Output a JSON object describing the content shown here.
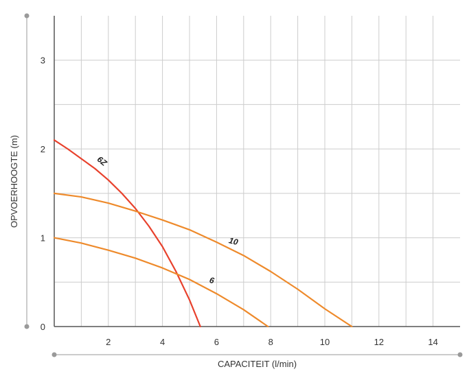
{
  "chart_data": {
    "type": "line",
    "title": "",
    "xlabel": "CAPACITEIT (l/min)",
    "ylabel": "OPVOERHOOGTE (m)",
    "xlim": [
      0,
      15
    ],
    "ylim": [
      0,
      3.5
    ],
    "x_ticks": [
      "2",
      "4",
      "6",
      "8",
      "10",
      "12",
      "14"
    ],
    "y_ticks": [
      "0",
      "1",
      "2",
      "3"
    ],
    "x_tick_values": [
      2,
      4,
      6,
      8,
      10,
      12,
      14
    ],
    "y_tick_values": [
      0,
      1,
      2,
      3
    ],
    "grid": true,
    "series": [
      {
        "name": "6Z",
        "color": "#e8412c",
        "x": [
          0,
          0.5,
          1,
          1.5,
          2,
          2.5,
          3,
          3.5,
          4,
          4.5,
          5,
          5.4
        ],
        "y": [
          2.1,
          2.0,
          1.89,
          1.78,
          1.65,
          1.5,
          1.33,
          1.13,
          0.9,
          0.62,
          0.3,
          0
        ]
      },
      {
        "name": "10",
        "color": "#ee8a2b",
        "x": [
          0,
          1,
          2,
          3,
          4,
          5,
          6,
          7,
          8,
          9,
          10,
          11
        ],
        "y": [
          1.5,
          1.46,
          1.39,
          1.3,
          1.2,
          1.09,
          0.95,
          0.8,
          0.62,
          0.42,
          0.2,
          0
        ]
      },
      {
        "name": "6",
        "color": "#ee8a2b",
        "x": [
          0,
          1,
          2,
          3,
          4,
          5,
          6,
          7,
          7.9
        ],
        "y": [
          1.0,
          0.94,
          0.86,
          0.77,
          0.66,
          0.53,
          0.37,
          0.19,
          0
        ]
      }
    ],
    "series_label_positions": [
      {
        "name": "6Z",
        "x": 1.7,
        "y": 1.84,
        "rotate": 40
      },
      {
        "name": "10",
        "x": 6.6,
        "y": 0.93,
        "rotate": 14
      },
      {
        "name": "6",
        "x": 5.8,
        "y": 0.49,
        "rotate": 14
      }
    ]
  }
}
